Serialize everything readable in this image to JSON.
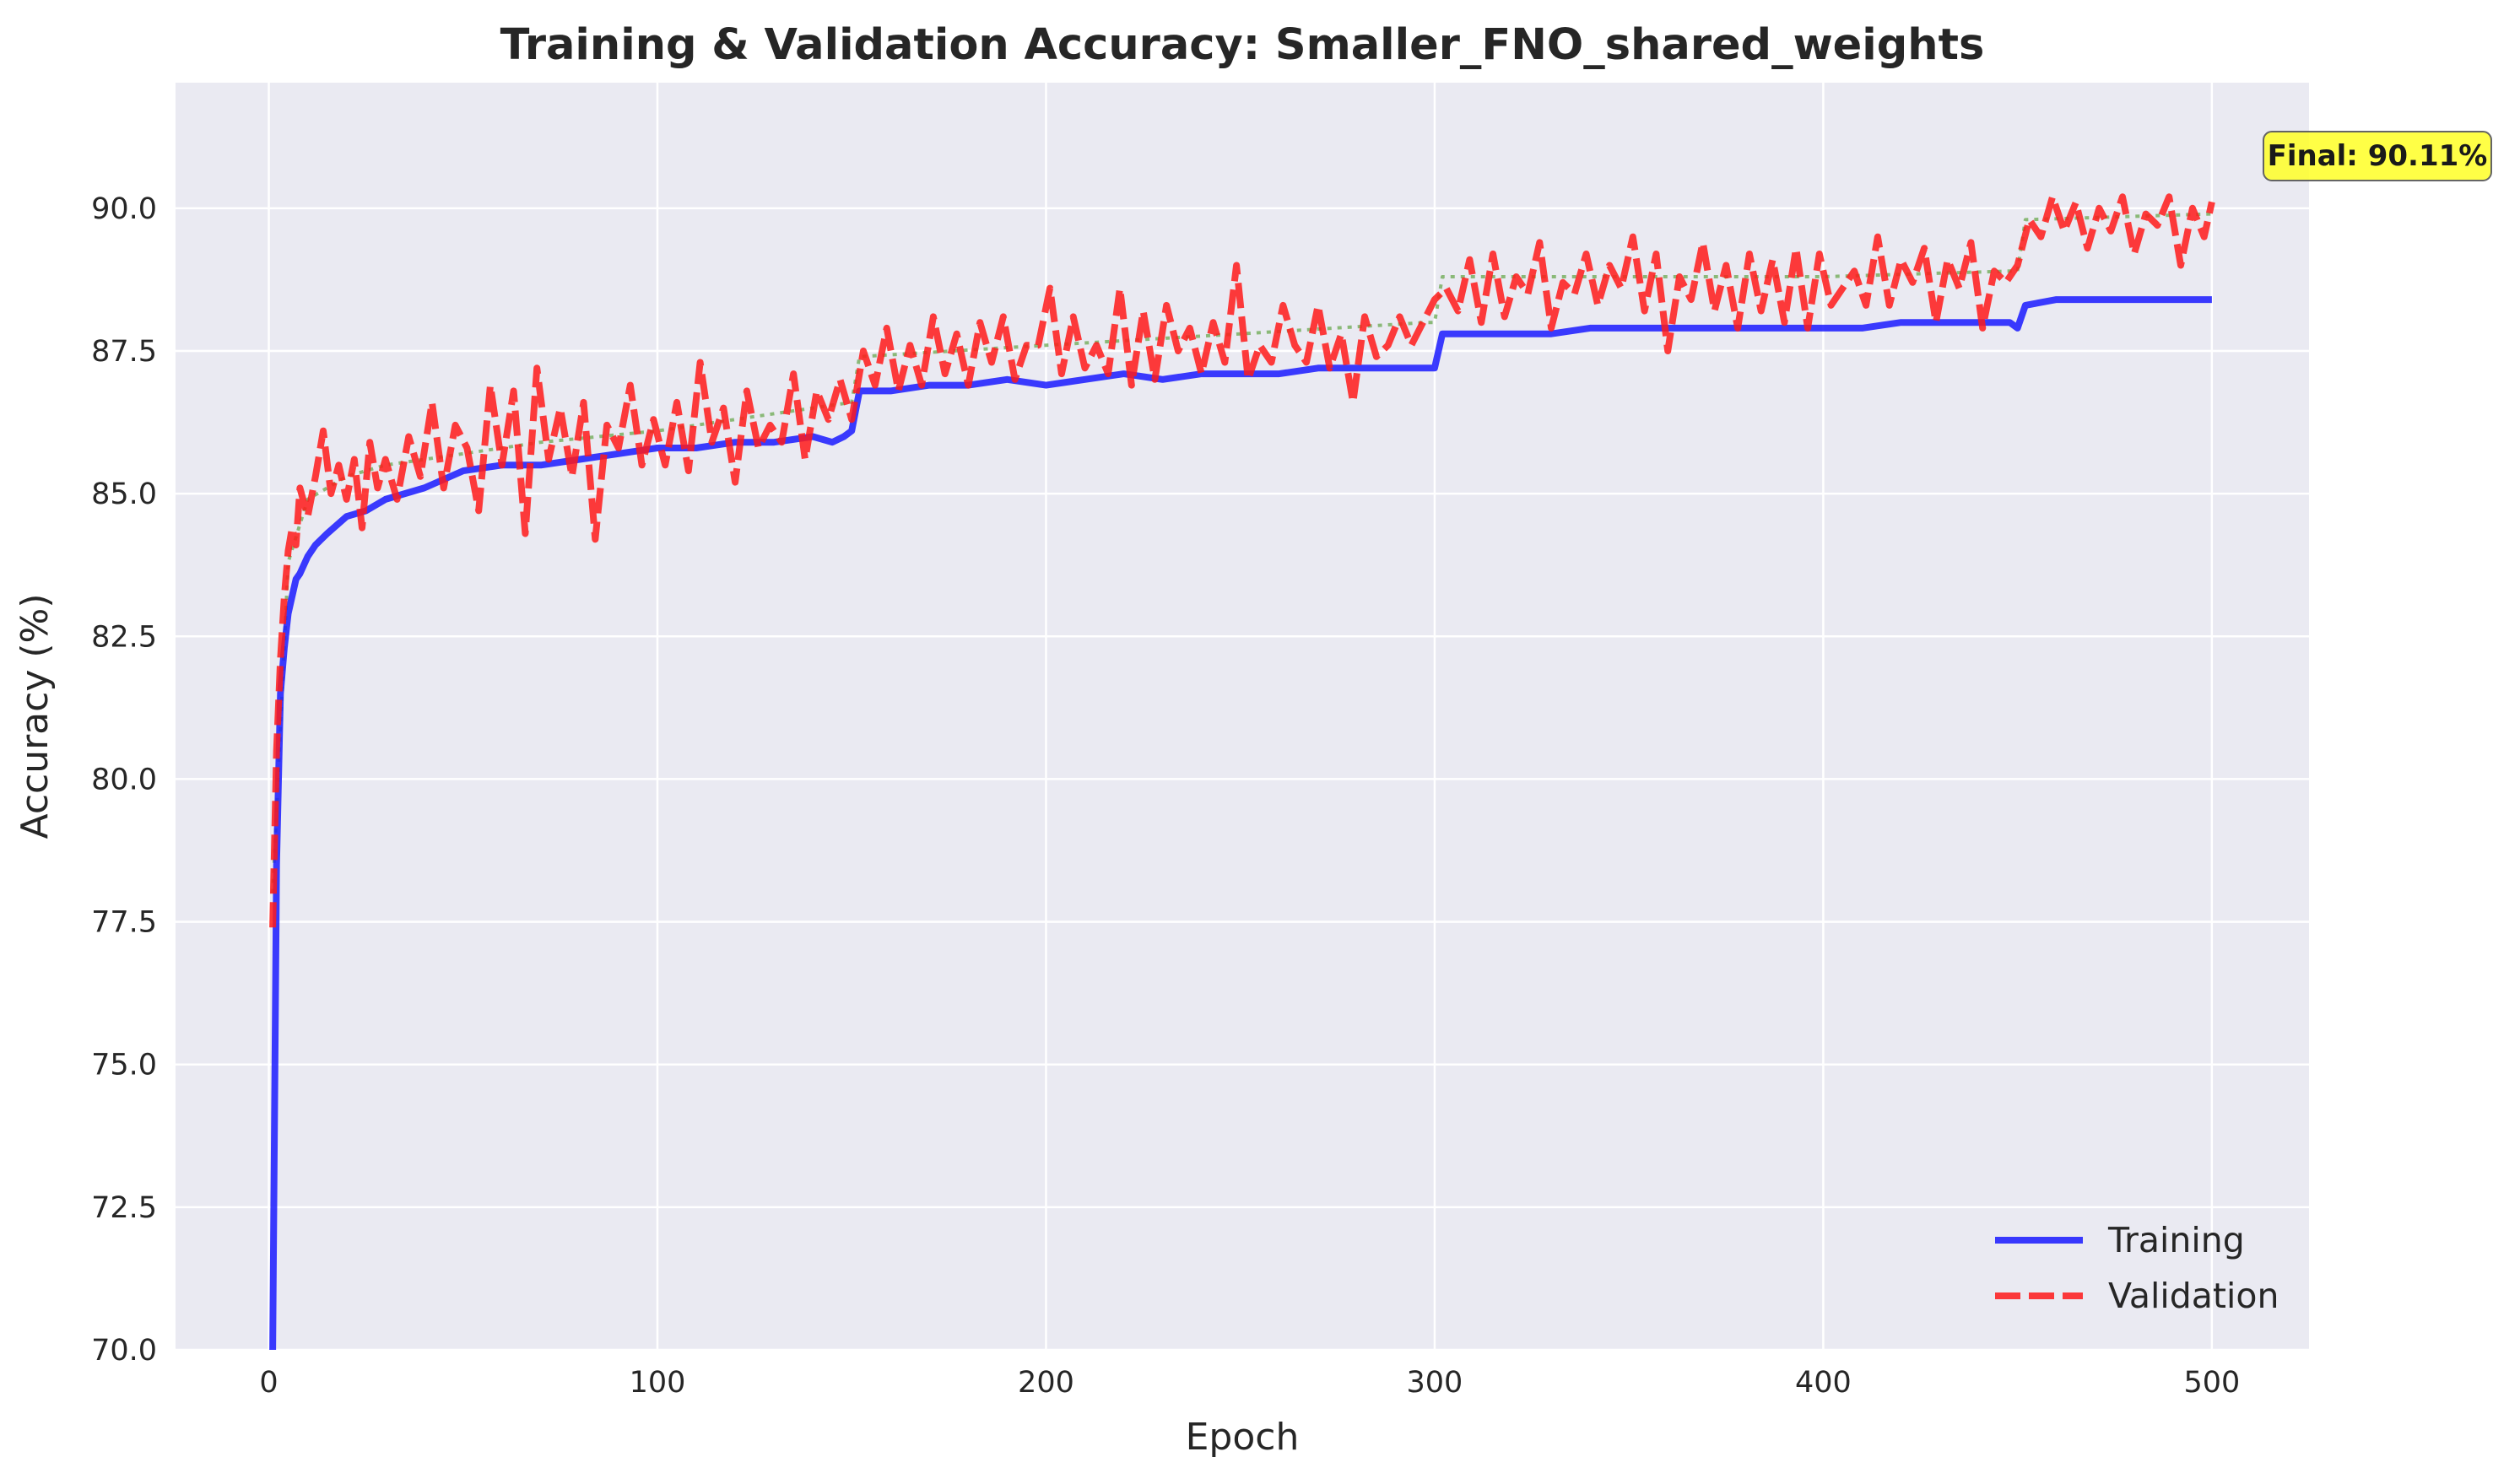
{
  "chart_data": {
    "type": "line",
    "title": "Training & Validation Accuracy: Smaller_FNO_shared_weights",
    "xlabel": "Epoch",
    "ylabel": "Accuracy (%)",
    "xlim": [
      -24,
      525
    ],
    "ylim": [
      70,
      92.2
    ],
    "xticks": [
      0,
      100,
      200,
      300,
      400,
      500
    ],
    "yticks": [
      70.0,
      72.5,
      75.0,
      77.5,
      80.0,
      82.5,
      85.0,
      87.5,
      90.0
    ],
    "xtick_labels": [
      "0",
      "100",
      "200",
      "300",
      "400",
      "500"
    ],
    "ytick_labels": [
      "70.0",
      "72.5",
      "75.0",
      "77.5",
      "80.0",
      "82.5",
      "85.0",
      "87.5",
      "90.0"
    ],
    "grid": true,
    "legend_position": "lower-right",
    "colors": {
      "background": "#eaeaf2",
      "grid": "#ffffff",
      "training": "#1a1aff",
      "validation": "#ff1a1a",
      "trend": "#6aa84f",
      "annotation_fill": "#ffff33"
    },
    "annotation": {
      "text": "Final: 90.11%",
      "x": 500,
      "y": 90.11
    },
    "series": [
      {
        "name": "Training",
        "style": "solid",
        "x": [
          1,
          2,
          3,
          4,
          5,
          6,
          7,
          8,
          10,
          12,
          15,
          20,
          25,
          30,
          40,
          50,
          60,
          70,
          80,
          90,
          100,
          110,
          120,
          130,
          140,
          145,
          148,
          150,
          152,
          155,
          160,
          170,
          180,
          190,
          200,
          210,
          220,
          230,
          240,
          250,
          260,
          270,
          280,
          290,
          298,
          300,
          302,
          310,
          320,
          330,
          340,
          350,
          360,
          370,
          380,
          390,
          400,
          410,
          420,
          430,
          440,
          448,
          450,
          452,
          460,
          470,
          480,
          490,
          500
        ],
        "values": [
          70.0,
          78.5,
          81.5,
          82.3,
          82.9,
          83.2,
          83.5,
          83.6,
          83.9,
          84.1,
          84.3,
          84.6,
          84.7,
          84.9,
          85.1,
          85.4,
          85.5,
          85.5,
          85.6,
          85.7,
          85.8,
          85.8,
          85.9,
          85.9,
          86.0,
          85.9,
          86.0,
          86.1,
          86.8,
          86.8,
          86.8,
          86.9,
          86.9,
          87.0,
          86.9,
          87.0,
          87.1,
          87.0,
          87.1,
          87.1,
          87.1,
          87.2,
          87.2,
          87.2,
          87.2,
          87.2,
          87.8,
          87.8,
          87.8,
          87.8,
          87.9,
          87.9,
          87.9,
          87.9,
          87.9,
          87.9,
          87.9,
          87.9,
          88.0,
          88.0,
          88.0,
          88.0,
          87.9,
          88.3,
          88.4,
          88.4,
          88.4,
          88.4,
          88.4
        ]
      },
      {
        "name": "Validation",
        "style": "dashed",
        "x": [
          1,
          2,
          3,
          4,
          5,
          6,
          7,
          8,
          10,
          12,
          14,
          16,
          18,
          20,
          22,
          24,
          26,
          28,
          30,
          33,
          36,
          39,
          42,
          45,
          48,
          51,
          54,
          57,
          60,
          63,
          66,
          69,
          72,
          75,
          78,
          81,
          84,
          87,
          90,
          93,
          96,
          99,
          102,
          105,
          108,
          111,
          114,
          117,
          120,
          123,
          126,
          129,
          132,
          135,
          138,
          141,
          144,
          147,
          150,
          153,
          156,
          159,
          162,
          165,
          168,
          171,
          174,
          177,
          180,
          183,
          186,
          189,
          192,
          195,
          198,
          201,
          204,
          207,
          210,
          213,
          216,
          219,
          222,
          225,
          228,
          231,
          234,
          237,
          240,
          243,
          246,
          249,
          252,
          255,
          258,
          261,
          264,
          267,
          270,
          273,
          276,
          279,
          282,
          285,
          288,
          291,
          294,
          297,
          300,
          303,
          306,
          309,
          312,
          315,
          318,
          321,
          324,
          327,
          330,
          333,
          336,
          339,
          342,
          345,
          348,
          351,
          354,
          357,
          360,
          363,
          366,
          369,
          372,
          375,
          378,
          381,
          384,
          387,
          390,
          393,
          396,
          399,
          402,
          405,
          408,
          411,
          414,
          417,
          420,
          423,
          426,
          429,
          432,
          435,
          438,
          441,
          444,
          447,
          450,
          453,
          456,
          459,
          462,
          465,
          468,
          471,
          474,
          477,
          480,
          483,
          486,
          489,
          492,
          495,
          498,
          500
        ],
        "values": [
          77.4,
          80.5,
          82.1,
          83.2,
          84.0,
          84.4,
          84.1,
          85.1,
          84.6,
          85.3,
          86.1,
          85.0,
          85.5,
          84.9,
          85.6,
          84.4,
          85.9,
          85.1,
          85.6,
          84.9,
          86.0,
          85.3,
          86.6,
          85.1,
          86.2,
          85.8,
          84.7,
          86.9,
          85.5,
          86.8,
          84.3,
          87.2,
          85.6,
          86.5,
          85.3,
          86.6,
          84.2,
          86.2,
          85.8,
          86.9,
          85.5,
          86.3,
          85.5,
          86.6,
          85.4,
          87.3,
          85.9,
          86.5,
          85.2,
          86.8,
          85.8,
          86.2,
          85.9,
          87.1,
          85.6,
          86.8,
          86.3,
          87.0,
          86.3,
          87.5,
          86.9,
          87.9,
          86.8,
          87.6,
          86.9,
          88.1,
          87.1,
          87.8,
          86.9,
          88.0,
          87.3,
          88.1,
          87.0,
          87.6,
          87.6,
          88.6,
          87.1,
          88.1,
          87.2,
          87.6,
          87.1,
          88.6,
          86.9,
          88.2,
          87.0,
          88.3,
          87.5,
          87.9,
          87.1,
          88.0,
          87.3,
          89.0,
          87.0,
          87.6,
          87.3,
          88.3,
          87.6,
          87.3,
          88.3,
          87.2,
          87.8,
          86.6,
          88.1,
          87.4,
          87.6,
          88.1,
          87.6,
          88.0,
          88.4,
          88.6,
          88.2,
          89.1,
          88.0,
          89.2,
          88.1,
          88.8,
          88.5,
          89.4,
          87.9,
          88.7,
          88.5,
          89.2,
          88.3,
          89.0,
          88.6,
          89.5,
          88.2,
          89.2,
          87.5,
          88.8,
          88.4,
          89.4,
          88.2,
          89.0,
          87.9,
          89.2,
          88.2,
          89.1,
          88.0,
          89.3,
          87.9,
          89.2,
          88.3,
          88.6,
          88.9,
          88.3,
          89.5,
          88.3,
          89.1,
          88.7,
          89.3,
          88.0,
          89.1,
          88.6,
          89.4,
          87.9,
          88.9,
          88.7,
          89.0,
          89.8,
          89.5,
          90.2,
          89.6,
          90.1,
          89.3,
          90.0,
          89.6,
          90.2,
          89.2,
          89.9,
          89.7,
          90.2,
          89.0,
          90.0,
          89.5,
          90.11
        ]
      },
      {
        "name": "",
        "style": "dotted",
        "x": [
          1,
          5,
          10,
          20,
          30,
          50,
          70,
          100,
          130,
          150,
          152,
          200,
          250,
          298,
          300,
          302,
          350,
          400,
          448,
          450,
          452,
          500
        ],
        "values": [
          78.0,
          83.8,
          84.9,
          85.3,
          85.5,
          85.7,
          85.9,
          86.1,
          86.4,
          86.6,
          87.4,
          87.6,
          87.8,
          88.0,
          88.0,
          88.8,
          88.8,
          88.8,
          88.9,
          88.9,
          89.8,
          89.9
        ]
      }
    ]
  }
}
